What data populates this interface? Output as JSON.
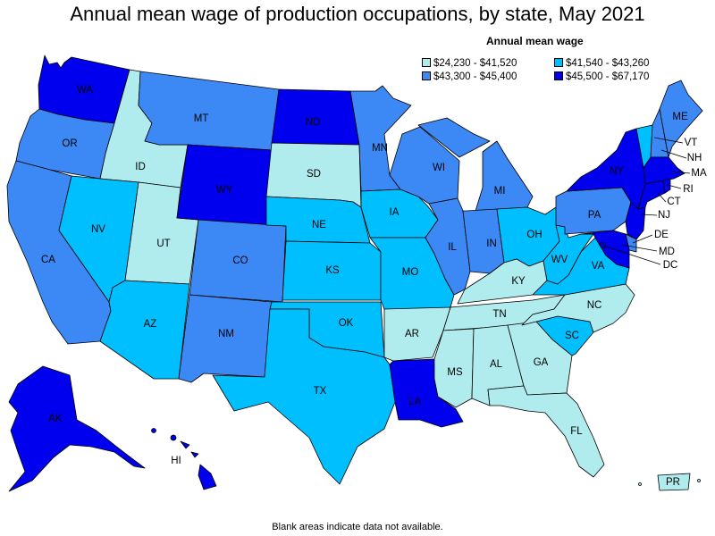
{
  "title": "Annual mean wage of production occupations, by state, May 2021",
  "legend": {
    "title": "Annual mean wage",
    "items": [
      {
        "label": "$24,230 - $41,520",
        "color": "#b0eced"
      },
      {
        "label": "$41,540 - $43,260",
        "color": "#00bfff"
      },
      {
        "label": "$43,300 - $45,400",
        "color": "#3c89f5"
      },
      {
        "label": "$45,500 - $67,170",
        "color": "#0000ee"
      }
    ]
  },
  "footnote": "Blank areas indicate data not available.",
  "states": [
    {
      "code": "WA",
      "tier": 3
    },
    {
      "code": "OR",
      "tier": 2
    },
    {
      "code": "CA",
      "tier": 2
    },
    {
      "code": "ID",
      "tier": 0
    },
    {
      "code": "NV",
      "tier": 1
    },
    {
      "code": "UT",
      "tier": 0
    },
    {
      "code": "AZ",
      "tier": 1
    },
    {
      "code": "MT",
      "tier": 2
    },
    {
      "code": "WY",
      "tier": 3
    },
    {
      "code": "CO",
      "tier": 2
    },
    {
      "code": "NM",
      "tier": 2
    },
    {
      "code": "ND",
      "tier": 3
    },
    {
      "code": "SD",
      "tier": 0
    },
    {
      "code": "NE",
      "tier": 1
    },
    {
      "code": "KS",
      "tier": 1
    },
    {
      "code": "OK",
      "tier": 1
    },
    {
      "code": "TX",
      "tier": 1
    },
    {
      "code": "MN",
      "tier": 2
    },
    {
      "code": "IA",
      "tier": 1
    },
    {
      "code": "MO",
      "tier": 1
    },
    {
      "code": "AR",
      "tier": 0
    },
    {
      "code": "LA",
      "tier": 3
    },
    {
      "code": "WI",
      "tier": 2
    },
    {
      "code": "IL",
      "tier": 2
    },
    {
      "code": "MI",
      "tier": 2
    },
    {
      "code": "IN",
      "tier": 2
    },
    {
      "code": "OH",
      "tier": 1
    },
    {
      "code": "KY",
      "tier": 0
    },
    {
      "code": "TN",
      "tier": 0
    },
    {
      "code": "MS",
      "tier": 0
    },
    {
      "code": "AL",
      "tier": 0
    },
    {
      "code": "GA",
      "tier": 0
    },
    {
      "code": "FL",
      "tier": 0
    },
    {
      "code": "SC",
      "tier": 1
    },
    {
      "code": "NC",
      "tier": 0
    },
    {
      "code": "VA",
      "tier": 1
    },
    {
      "code": "WV",
      "tier": 1
    },
    {
      "code": "PA",
      "tier": 2
    },
    {
      "code": "NY",
      "tier": 3
    },
    {
      "code": "VT",
      "tier": 1
    },
    {
      "code": "NH",
      "tier": 2
    },
    {
      "code": "ME",
      "tier": 2
    },
    {
      "code": "MA",
      "tier": 3
    },
    {
      "code": "RI",
      "tier": 3
    },
    {
      "code": "CT",
      "tier": 3
    },
    {
      "code": "NJ",
      "tier": 3
    },
    {
      "code": "DE",
      "tier": 2
    },
    {
      "code": "MD",
      "tier": 3
    },
    {
      "code": "DC",
      "tier": 3
    },
    {
      "code": "AK",
      "tier": 3
    },
    {
      "code": "HI",
      "tier": 3
    },
    {
      "code": "PR",
      "tier": 0
    }
  ]
}
